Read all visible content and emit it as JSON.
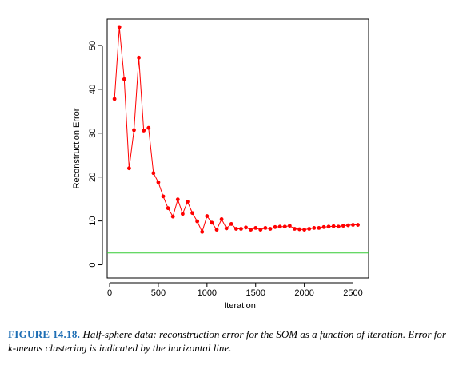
{
  "caption": {
    "label": "FIGURE 14.18.",
    "text": "Half-sphere data: reconstruction error for the SOM as a function of iteration. Error for k-means clustering is indicated by the horizontal line."
  },
  "chart_data": {
    "type": "line",
    "title": "",
    "xlabel": "Iteration",
    "ylabel": "Reconstruction Error",
    "xlim": [
      -25,
      2660
    ],
    "ylim": [
      -3,
      56
    ],
    "xticks": [
      0,
      500,
      1000,
      1500,
      2000,
      2500
    ],
    "yticks": [
      0,
      10,
      20,
      30,
      40,
      50
    ],
    "grid": false,
    "series": [
      {
        "color": "#ff0000",
        "marker": "circle",
        "x": [
          50,
          100,
          150,
          200,
          250,
          300,
          350,
          400,
          450,
          500,
          550,
          600,
          650,
          700,
          750,
          800,
          850,
          900,
          950,
          1000,
          1050,
          1100,
          1150,
          1200,
          1250,
          1300,
          1350,
          1400,
          1450,
          1500,
          1550,
          1600,
          1650,
          1700,
          1750,
          1800,
          1850,
          1900,
          1950,
          2000,
          2050,
          2100,
          2150,
          2200,
          2250,
          2300,
          2350,
          2400,
          2450,
          2500,
          2550
        ],
        "values": [
          37.8,
          54.2,
          42.3,
          22.0,
          30.7,
          47.2,
          30.6,
          31.2,
          20.9,
          18.8,
          15.6,
          12.9,
          11.0,
          14.9,
          11.6,
          14.4,
          11.8,
          9.9,
          7.5,
          11.1,
          9.6,
          8.0,
          10.4,
          8.3,
          9.3,
          8.2,
          8.2,
          8.5,
          8.0,
          8.4,
          8.0,
          8.4,
          8.2,
          8.6,
          8.7,
          8.7,
          8.9,
          8.2,
          8.1,
          8.0,
          8.2,
          8.4,
          8.4,
          8.6,
          8.7,
          8.8,
          8.7,
          8.9,
          9.0,
          9.1,
          9.1
        ]
      }
    ],
    "reference_line": {
      "y": 2.7,
      "color": "#33cc33"
    }
  }
}
